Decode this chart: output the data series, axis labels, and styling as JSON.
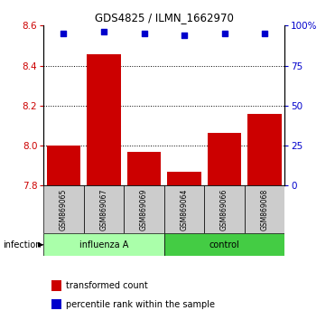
{
  "title": "GDS4825 / ILMN_1662970",
  "categories": [
    "GSM869065",
    "GSM869067",
    "GSM869069",
    "GSM869064",
    "GSM869066",
    "GSM869068"
  ],
  "bar_values": [
    8.0,
    8.455,
    7.97,
    7.87,
    8.065,
    8.16
  ],
  "percentile_values": [
    95,
    96,
    95,
    94,
    95,
    95
  ],
  "bar_color": "#cc0000",
  "dot_color": "#0000cc",
  "ylim_left": [
    7.8,
    8.6
  ],
  "ylim_right": [
    0,
    100
  ],
  "yticks_left": [
    7.8,
    8.0,
    8.2,
    8.4,
    8.6
  ],
  "yticks_right": [
    0,
    25,
    50,
    75,
    100
  ],
  "groups": [
    {
      "label": "influenza A",
      "indices": [
        0,
        1,
        2
      ],
      "color_light": "#ccffcc",
      "color_dark": "#44cc44"
    },
    {
      "label": "control",
      "indices": [
        3,
        4,
        5
      ],
      "color_light": "#ccffcc",
      "color_dark": "#44cc44"
    }
  ],
  "infection_label": "infection",
  "legend_items": [
    {
      "label": "transformed count",
      "color": "#cc0000"
    },
    {
      "label": "percentile rank within the sample",
      "color": "#0000cc"
    }
  ],
  "bar_width": 0.85,
  "grid_linestyle": "dotted",
  "background_color": "#ffffff",
  "tick_label_area_color": "#cccccc",
  "group_bar_color": "#66dd66"
}
